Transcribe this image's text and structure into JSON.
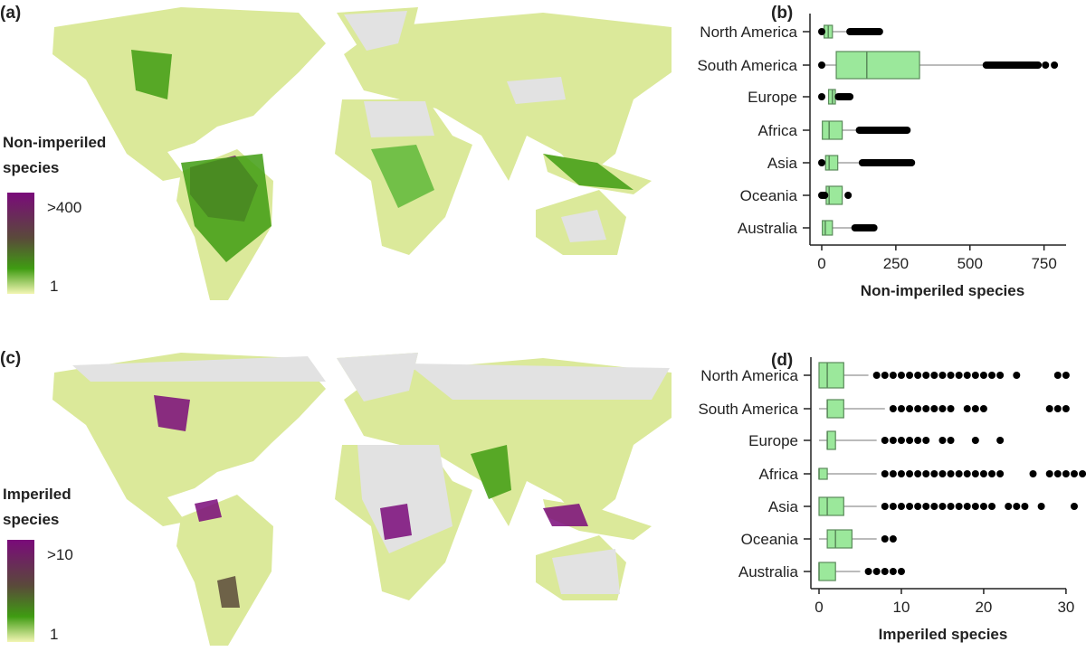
{
  "panels": {
    "a": {
      "label": "(a)",
      "legend_title": [
        "Non-imperiled",
        "species"
      ],
      "legend_max": ">400",
      "legend_min": "1"
    },
    "b": {
      "label": "(b)"
    },
    "c": {
      "label": "(c)",
      "legend_title": [
        "Imperiled",
        "species"
      ],
      "legend_max": ">10",
      "legend_min": "1"
    },
    "d": {
      "label": "(d)"
    }
  },
  "colors": {
    "high": "#7a0a7a",
    "mid": "#5a4a3a",
    "low_green": "#3f9c12",
    "min": "#f3f6b4",
    "no_data": "#e2e2e2",
    "box_fill": "#9be89b",
    "box_stroke": "#5a8a5a"
  },
  "chart_data": [
    {
      "type": "boxplot",
      "panel": "b",
      "orientation": "horizontal",
      "xlabel": "Non-imperiled species",
      "xlim": [
        0,
        800
      ],
      "xticks": [
        "0",
        "250",
        "500",
        "750"
      ],
      "categories": [
        "North America",
        "South America",
        "Europe",
        "Africa",
        "Asia",
        "Oceania",
        "Australia"
      ],
      "boxes": [
        {
          "q1": 8,
          "median": 22,
          "q3": 36,
          "whisker_low": 8,
          "whisker_high": 95,
          "outliers_low": [
            0
          ],
          "outlier_range_high": [
            95,
            195
          ],
          "outliers_high": []
        },
        {
          "q1": 49,
          "median": 152,
          "q3": 330,
          "whisker_low": 5,
          "whisker_high": 555,
          "outliers_low": [
            0
          ],
          "outlier_range_high": [
            555,
            730
          ],
          "outliers_high": [
            755,
            785
          ]
        },
        {
          "q1": 23,
          "median": 36,
          "q3": 46,
          "whisker_low": 23,
          "whisker_high": 56,
          "outliers_low": [
            0
          ],
          "outlier_range_high": [
            56,
            95
          ],
          "outliers_high": []
        },
        {
          "q1": 2,
          "median": 25,
          "q3": 69,
          "whisker_low": 2,
          "whisker_high": 127,
          "outliers_low": [],
          "outlier_range_high": [
            127,
            288
          ],
          "outliers_high": []
        },
        {
          "q1": 13,
          "median": 25,
          "q3": 54,
          "whisker_low": 13,
          "whisker_high": 137,
          "outliers_low": [
            0
          ],
          "outlier_range_high": [
            137,
            303
          ],
          "outliers_high": []
        },
        {
          "q1": 15,
          "median": 25,
          "q3": 69,
          "whisker_low": 15,
          "whisker_high": 69,
          "outliers_low": [
            0,
            5,
            10
          ],
          "outlier_range_high": null,
          "outliers_high": [
            89
          ]
        },
        {
          "q1": 2,
          "median": 12,
          "q3": 36,
          "whisker_low": 2,
          "whisker_high": 112,
          "outliers_low": [],
          "outlier_range_high": [
            112,
            176
          ],
          "outliers_high": []
        }
      ]
    },
    {
      "type": "boxplot",
      "panel": "d",
      "orientation": "horizontal",
      "xlabel": "Imperiled species",
      "xlim": [
        0,
        31
      ],
      "xticks": [
        "0",
        "10",
        "20",
        "30"
      ],
      "categories": [
        "North America",
        "South America",
        "Europe",
        "Africa",
        "Asia",
        "Oceania",
        "Australia"
      ],
      "boxes": [
        {
          "q1": 0,
          "median": 1,
          "q3": 3,
          "whisker_low": 0,
          "whisker_high": 6,
          "outliers_high": [
            7,
            8,
            9,
            10,
            11,
            12,
            13,
            14,
            15,
            16,
            17,
            18,
            19,
            20,
            21,
            22,
            24,
            29,
            30
          ]
        },
        {
          "q1": 1,
          "median": 1,
          "q3": 3,
          "whisker_low": 0,
          "whisker_high": 8,
          "outliers_high": [
            9,
            10,
            11,
            12,
            13,
            14,
            15,
            16,
            18,
            19,
            20,
            28,
            29,
            30
          ]
        },
        {
          "q1": 1,
          "median": 1,
          "q3": 2,
          "whisker_low": 0,
          "whisker_high": 7,
          "outliers_high": [
            8,
            9,
            10,
            11,
            12,
            13,
            15,
            16,
            19,
            22
          ]
        },
        {
          "q1": 0,
          "median": 0,
          "q3": 1,
          "whisker_low": 0,
          "whisker_high": 7,
          "outliers_high": [
            8,
            9,
            10,
            11,
            12,
            13,
            14,
            15,
            16,
            17,
            18,
            19,
            20,
            21,
            22,
            26,
            28,
            29,
            30,
            31,
            32
          ]
        },
        {
          "q1": 0,
          "median": 1,
          "q3": 3,
          "whisker_low": 0,
          "whisker_high": 7,
          "outliers_high": [
            8,
            9,
            10,
            11,
            12,
            13,
            14,
            15,
            16,
            17,
            18,
            19,
            20,
            21,
            23,
            24,
            25,
            27,
            31
          ]
        },
        {
          "q1": 1,
          "median": 2,
          "q3": 4,
          "whisker_low": 0,
          "whisker_high": 7,
          "outliers_high": [
            8,
            9
          ]
        },
        {
          "q1": 0,
          "median": 0,
          "q3": 2,
          "whisker_low": 0,
          "whisker_high": 5,
          "outliers_high": [
            6,
            7,
            8,
            9,
            10
          ]
        }
      ]
    }
  ]
}
